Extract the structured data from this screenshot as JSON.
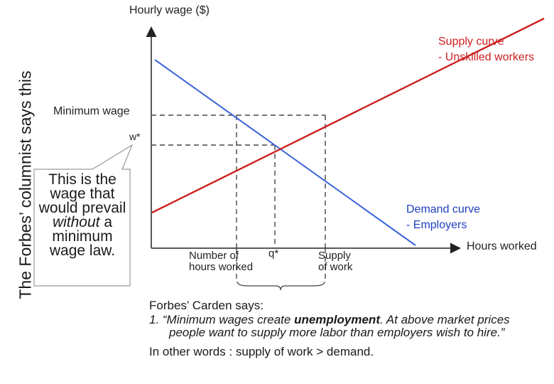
{
  "side_title": "The Forbes’ columnist says this",
  "axes": {
    "y_label": "Hourly wage ($)",
    "x_label": "Hours worked"
  },
  "labels": {
    "minimum_wage": "Minimum wage",
    "w_star": "w*",
    "supply_curve": "Supply curve\n- Unskilled workers",
    "demand_curve": "Demand curve\n- Employers",
    "number_of_hours": "Number of\nhours worked",
    "q_star": "q*",
    "supply_of_work": "Supply\nof work"
  },
  "colors": {
    "supply": "#cc1f1f",
    "demand": "#3a64d8",
    "axis": "#222222",
    "dashed": "#444444"
  },
  "bubble": {
    "part1": "This is the wage that would prevail",
    "italic": "without",
    "part2": "a minimum wage law."
  },
  "note": {
    "line1": "Forbes’ Carden says:",
    "line2_pre": "1. “Minimum wages create ",
    "line2_bold": "unemployment",
    "line2_post": ". At above market prices people want to supply more labor than employers wish to hire.”",
    "line3": "In other words : supply of work > demand."
  }
}
